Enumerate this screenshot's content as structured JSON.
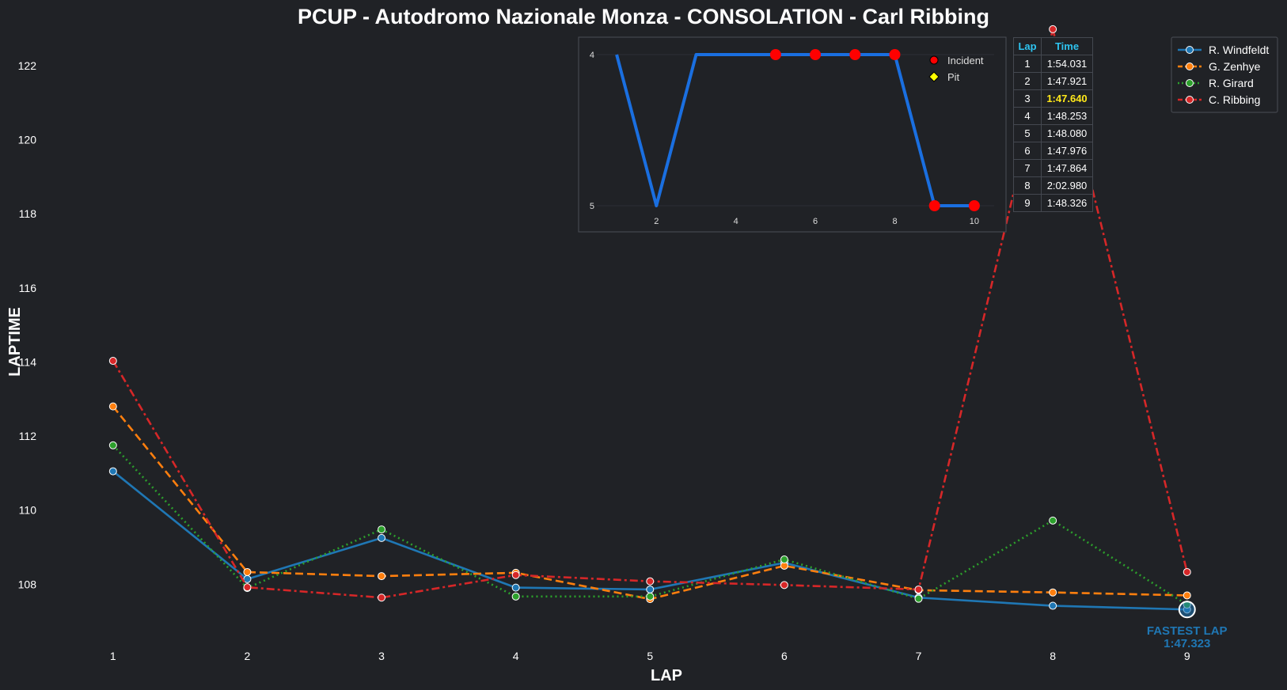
{
  "chart_data": [
    {
      "type": "line",
      "title": "PCUP - Autodromo Nazionale Monza - CONSOLATION - Carl Ribbing",
      "xlabel": "LAP",
      "ylabel": "LAPTIME",
      "x": [
        1,
        2,
        3,
        4,
        5,
        6,
        7,
        8,
        9
      ],
      "xlim": [
        0.5,
        9.65
      ],
      "ylim": [
        106.3,
        123.0
      ],
      "yticks": [
        108,
        110,
        112,
        114,
        116,
        118,
        120,
        122
      ],
      "grid": false,
      "legend_position": "top-right",
      "series": [
        {
          "name": "R. Windfeldt",
          "color": "#1f77b4",
          "style": "solid",
          "values": [
            111.05,
            108.14,
            109.25,
            107.91,
            107.86,
            108.58,
            107.64,
            107.42,
            107.32
          ]
        },
        {
          "name": "G. Zenhye",
          "color": "#ff7f0e",
          "style": "dashed",
          "values": [
            112.8,
            108.33,
            108.22,
            108.31,
            107.6,
            108.5,
            107.84,
            107.78,
            107.7
          ]
        },
        {
          "name": "R. Girard",
          "color": "#2ca02c",
          "style": "dotted",
          "values": [
            111.75,
            107.9,
            109.48,
            107.67,
            107.67,
            108.67,
            107.61,
            109.72,
            107.45
          ]
        },
        {
          "name": "C. Ribbing",
          "color": "#d62728",
          "style": "dashdot",
          "values": [
            114.03,
            107.92,
            107.64,
            108.25,
            108.08,
            107.98,
            107.86,
            122.98,
            108.33
          ]
        }
      ],
      "annotation": {
        "line1": "FASTEST LAP",
        "line2": "1:47.323",
        "lap": 9,
        "value": 107.32
      }
    },
    {
      "type": "line",
      "x": [
        1,
        2,
        3,
        4,
        5,
        6,
        7,
        8,
        9,
        10
      ],
      "values": [
        4,
        5,
        4,
        4,
        4,
        4,
        4,
        4,
        5,
        5
      ],
      "ylim": [
        4,
        5
      ],
      "yticks": [
        4,
        5
      ],
      "xticks": [
        2,
        4,
        6,
        8,
        10
      ],
      "y_inverted": true,
      "color": "#1a6fe0",
      "incidents": [
        5,
        6,
        7,
        8,
        9,
        10
      ],
      "pits": [],
      "legend": [
        {
          "label": "Incident",
          "color": "#ff0000",
          "marker": "circle"
        },
        {
          "label": "Pit",
          "color": "#ffff00",
          "marker": "diamond"
        }
      ]
    }
  ],
  "lap_table": {
    "headers": [
      "Lap",
      "Time"
    ],
    "rows": [
      [
        "1",
        "1:54.031"
      ],
      [
        "2",
        "1:47.921"
      ],
      [
        "3",
        "1:47.640"
      ],
      [
        "4",
        "1:48.253"
      ],
      [
        "5",
        "1:48.080"
      ],
      [
        "6",
        "1:47.976"
      ],
      [
        "7",
        "1:47.864"
      ],
      [
        "8",
        "2:02.980"
      ],
      [
        "9",
        "1:48.326"
      ]
    ],
    "best_row": 2,
    "best_color": "#ffe81a"
  }
}
